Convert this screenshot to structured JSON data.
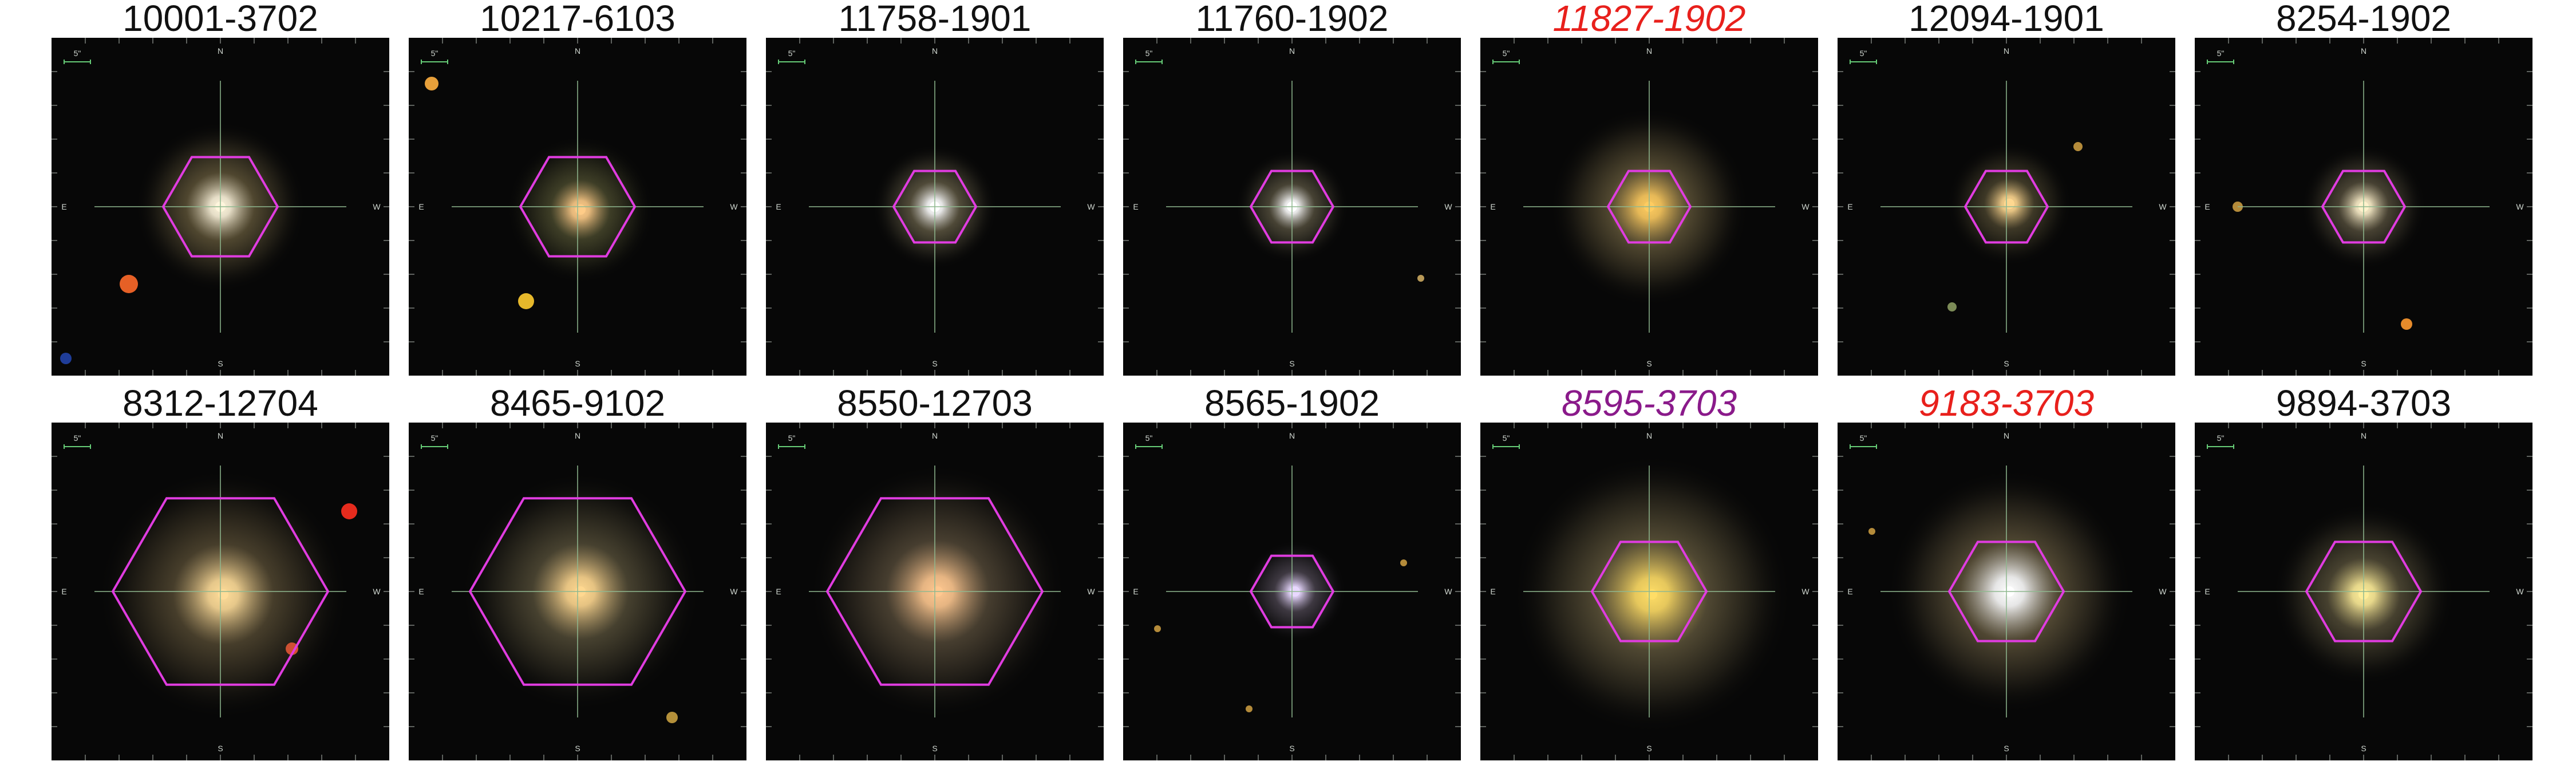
{
  "colors": {
    "hexagon": "#e03ce0",
    "crosshair": "#8fb88f",
    "scale_bar": "#66cc77",
    "red_label": "#e8201c",
    "purple_label": "#8a1a8a",
    "black_label": "#111111"
  },
  "compass": {
    "north": "N",
    "south": "S",
    "east": "E",
    "west": "W",
    "scale": "5\""
  },
  "panels": [
    {
      "label": "10001-3702",
      "label_color": "#111111",
      "italic": false,
      "hex_size": "medium"
    },
    {
      "label": "10217-6103",
      "label_color": "#111111",
      "italic": false,
      "hex_size": "medium"
    },
    {
      "label": "11758-1901",
      "label_color": "#111111",
      "italic": false,
      "hex_size": "small"
    },
    {
      "label": "11760-1902",
      "label_color": "#111111",
      "italic": false,
      "hex_size": "small"
    },
    {
      "label": "11827-1902",
      "label_color": "#e8201c",
      "italic": true,
      "hex_size": "small"
    },
    {
      "label": "12094-1901",
      "label_color": "#111111",
      "italic": false,
      "hex_size": "small"
    },
    {
      "label": "8254-1902",
      "label_color": "#111111",
      "italic": false,
      "hex_size": "small"
    },
    {
      "label": "8312-12704",
      "label_color": "#111111",
      "italic": false,
      "hex_size": "large"
    },
    {
      "label": "8465-9102",
      "label_color": "#111111",
      "italic": false,
      "hex_size": "large"
    },
    {
      "label": "8550-12703",
      "label_color": "#111111",
      "italic": false,
      "hex_size": "large"
    },
    {
      "label": "8565-1902",
      "label_color": "#111111",
      "italic": false,
      "hex_size": "small"
    },
    {
      "label": "8595-3703",
      "label_color": "#8a1a8a",
      "italic": true,
      "hex_size": "medium"
    },
    {
      "label": "9183-3703",
      "label_color": "#e8201c",
      "italic": true,
      "hex_size": "medium"
    },
    {
      "label": "9894-3703",
      "label_color": "#111111",
      "italic": false,
      "hex_size": "medium"
    }
  ]
}
